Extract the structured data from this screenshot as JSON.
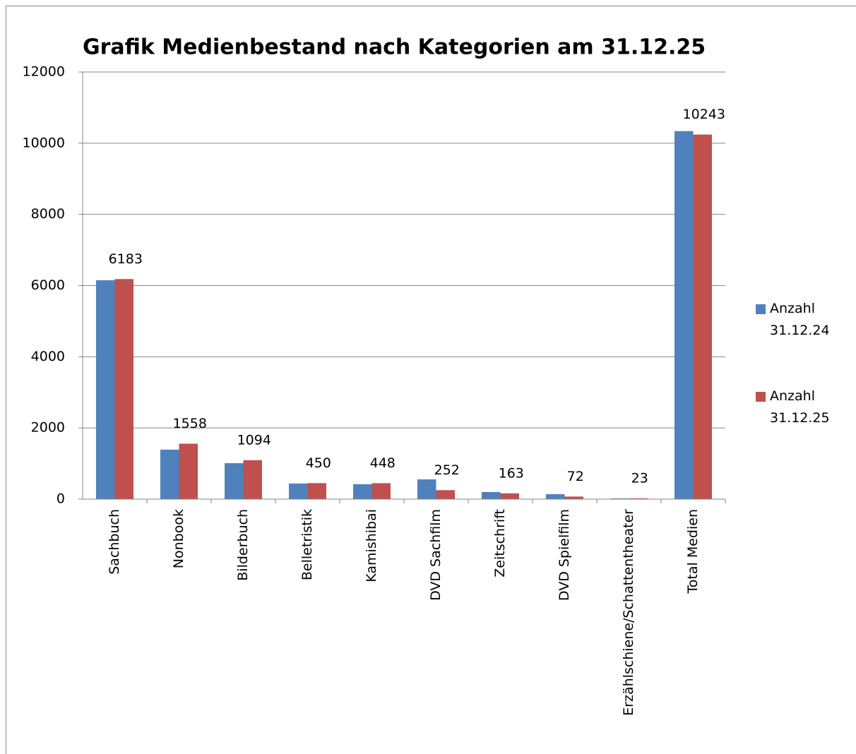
{
  "chart_data": {
    "type": "bar",
    "title": "Grafik Medienbestand nach Kategorien am 31.12.25",
    "categories": [
      "Sachbuch",
      "Nonbook",
      "Bilderbuch",
      "Belletristik",
      "Kamishibai",
      "DVD Sachfilm",
      "Zeitschrift",
      "DVD Spielfilm",
      "Erzählschiene/Schattentheater",
      "Total Medien"
    ],
    "series": [
      {
        "name": "Anzahl 31.12.24",
        "color": "#4f81bd",
        "values": [
          6150,
          1390,
          1010,
          440,
          420,
          555,
          200,
          140,
          20,
          10340
        ]
      },
      {
        "name": "Anzahl 31.12.25",
        "color": "#c0504d",
        "values": [
          6183,
          1558,
          1094,
          450,
          448,
          252,
          163,
          72,
          23,
          10243
        ],
        "data_labels": true
      }
    ],
    "ylim": [
      0,
      12000
    ],
    "yticks": [
      0,
      2000,
      4000,
      6000,
      8000,
      10000,
      12000
    ],
    "grid": true,
    "legend": "right"
  }
}
